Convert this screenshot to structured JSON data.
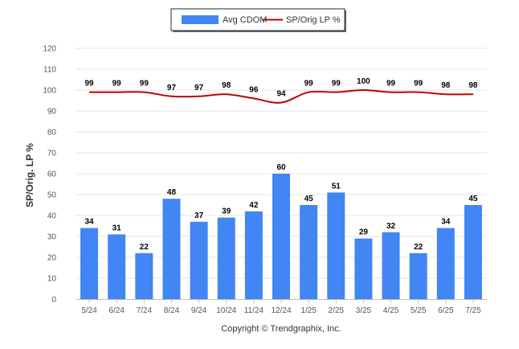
{
  "chart_data": {
    "type": "bar",
    "categories": [
      "5/24",
      "6/24",
      "7/24",
      "8/24",
      "9/24",
      "10/24",
      "11/24",
      "12/24",
      "1/25",
      "2/25",
      "3/25",
      "4/25",
      "5/25",
      "6/25",
      "7/25"
    ],
    "series": [
      {
        "name": "Avg CDOM",
        "kind": "bar",
        "color": "#4285f4",
        "values": [
          34,
          31,
          22,
          48,
          37,
          39,
          42,
          60,
          45,
          51,
          29,
          32,
          22,
          34,
          45
        ]
      },
      {
        "name": "SP/Orig LP %",
        "kind": "line",
        "color": "#c00000",
        "values": [
          99,
          99,
          99,
          97,
          97,
          98,
          96,
          94,
          99,
          99,
          100,
          99,
          99,
          98,
          98
        ]
      }
    ],
    "ylabel": "SP/Orig. LP %",
    "xlabel": "",
    "ylim": [
      0,
      120
    ],
    "yticks": [
      0,
      10,
      20,
      30,
      40,
      50,
      60,
      70,
      80,
      90,
      100,
      110,
      120
    ],
    "grid": true,
    "legend_position": "top-center"
  },
  "footer": {
    "credit": "Copyright © Trendgraphix, Inc."
  }
}
